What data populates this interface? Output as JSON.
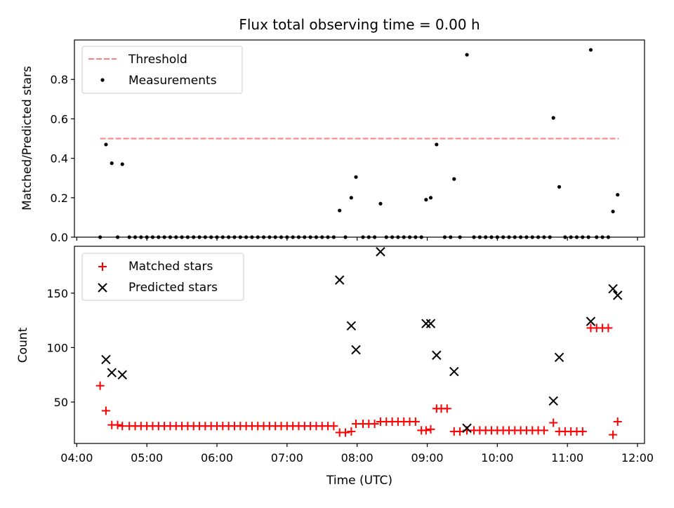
{
  "chart_data": {
    "title": "Flux total observing time = 0.00 h",
    "xlabel": "Time (UTC)",
    "x_ticks": [
      "04:00",
      "05:00",
      "06:00",
      "07:00",
      "08:00",
      "09:00",
      "10:00",
      "11:00",
      "12:00"
    ],
    "xlim": [
      "03:58",
      "12:06"
    ],
    "grid": false,
    "panels": [
      {
        "type": "scatter",
        "ylabel": "Matched/Predicted stars",
        "ylim": [
          0,
          1.0
        ],
        "y_ticks": [
          0.0,
          0.2,
          0.4,
          0.6,
          0.8
        ],
        "legend": "top-left",
        "threshold": {
          "name": "Threshold",
          "y": 0.5,
          "x_start": "04:20",
          "x_end": "11:44",
          "color": "#ff7f7f",
          "style": "dashed"
        },
        "series": [
          {
            "name": "Measurements",
            "color": "#000000",
            "marker": "dot",
            "points": [
              [
                "04:20",
                0.0
              ],
              [
                "04:25",
                0.47
              ],
              [
                "04:30",
                0.375
              ],
              [
                "04:35",
                0.0
              ],
              [
                "04:39",
                0.37
              ],
              [
                "04:45",
                0.0
              ],
              [
                "04:50",
                0.0
              ],
              [
                "04:55",
                0.0
              ],
              [
                "05:00",
                0.0
              ],
              [
                "05:05",
                0.0
              ],
              [
                "05:10",
                0.0
              ],
              [
                "05:15",
                0.0
              ],
              [
                "05:20",
                0.0
              ],
              [
                "05:25",
                0.0
              ],
              [
                "05:30",
                0.0
              ],
              [
                "05:35",
                0.0
              ],
              [
                "05:40",
                0.0
              ],
              [
                "05:45",
                0.0
              ],
              [
                "05:50",
                0.0
              ],
              [
                "05:55",
                0.0
              ],
              [
                "06:00",
                0.0
              ],
              [
                "06:05",
                0.0
              ],
              [
                "06:10",
                0.0
              ],
              [
                "06:15",
                0.0
              ],
              [
                "06:20",
                0.0
              ],
              [
                "06:25",
                0.0
              ],
              [
                "06:30",
                0.0
              ],
              [
                "06:35",
                0.0
              ],
              [
                "06:40",
                0.0
              ],
              [
                "06:45",
                0.0
              ],
              [
                "06:50",
                0.0
              ],
              [
                "06:55",
                0.0
              ],
              [
                "07:00",
                0.0
              ],
              [
                "07:05",
                0.0
              ],
              [
                "07:10",
                0.0
              ],
              [
                "07:15",
                0.0
              ],
              [
                "07:20",
                0.0
              ],
              [
                "07:25",
                0.0
              ],
              [
                "07:30",
                0.0
              ],
              [
                "07:35",
                0.0
              ],
              [
                "07:40",
                0.0
              ],
              [
                "07:45",
                0.135
              ],
              [
                "07:50",
                0.0
              ],
              [
                "07:55",
                0.2
              ],
              [
                "07:59",
                0.305
              ],
              [
                "08:05",
                0.0
              ],
              [
                "08:10",
                0.0
              ],
              [
                "08:15",
                0.0
              ],
              [
                "08:20",
                0.17
              ],
              [
                "08:25",
                0.0
              ],
              [
                "08:30",
                0.0
              ],
              [
                "08:35",
                0.0
              ],
              [
                "08:40",
                0.0
              ],
              [
                "08:45",
                0.0
              ],
              [
                "08:50",
                0.0
              ],
              [
                "08:55",
                0.0
              ],
              [
                "08:59",
                0.19
              ],
              [
                "09:03",
                0.2
              ],
              [
                "09:08",
                0.47
              ],
              [
                "09:15",
                0.0
              ],
              [
                "09:20",
                0.0
              ],
              [
                "09:23",
                0.295
              ],
              [
                "09:28",
                0.0
              ],
              [
                "09:34",
                0.925
              ],
              [
                "09:40",
                0.0
              ],
              [
                "09:45",
                0.0
              ],
              [
                "09:50",
                0.0
              ],
              [
                "09:55",
                0.0
              ],
              [
                "10:00",
                0.0
              ],
              [
                "10:05",
                0.0
              ],
              [
                "10:10",
                0.0
              ],
              [
                "10:15",
                0.0
              ],
              [
                "10:20",
                0.0
              ],
              [
                "10:25",
                0.0
              ],
              [
                "10:30",
                0.0
              ],
              [
                "10:35",
                0.0
              ],
              [
                "10:40",
                0.0
              ],
              [
                "10:45",
                0.0
              ],
              [
                "10:48",
                0.605
              ],
              [
                "10:53",
                0.255
              ],
              [
                "10:58",
                0.0
              ],
              [
                "11:03",
                0.0
              ],
              [
                "11:08",
                0.0
              ],
              [
                "11:13",
                0.0
              ],
              [
                "11:18",
                0.0
              ],
              [
                "11:20",
                0.95
              ],
              [
                "11:25",
                0.0
              ],
              [
                "11:30",
                0.0
              ],
              [
                "11:35",
                0.0
              ],
              [
                "11:39",
                0.13
              ],
              [
                "11:43",
                0.215
              ]
            ]
          }
        ]
      },
      {
        "type": "scatter",
        "ylabel": "Count",
        "ylim": [
          12,
          193
        ],
        "y_ticks": [
          50,
          100,
          150
        ],
        "legend": "top-left",
        "series": [
          {
            "name": "Matched stars",
            "color": "#ff0000",
            "marker": "plus",
            "points": [
              [
                "04:20",
                65
              ],
              [
                "04:25",
                42
              ],
              [
                "04:30",
                29
              ],
              [
                "04:35",
                29
              ],
              [
                "04:39",
                28
              ],
              [
                "04:45",
                28
              ],
              [
                "04:50",
                28
              ],
              [
                "04:55",
                28
              ],
              [
                "05:00",
                28
              ],
              [
                "05:05",
                28
              ],
              [
                "05:10",
                28
              ],
              [
                "05:15",
                28
              ],
              [
                "05:20",
                28
              ],
              [
                "05:25",
                28
              ],
              [
                "05:30",
                28
              ],
              [
                "05:35",
                28
              ],
              [
                "05:40",
                28
              ],
              [
                "05:45",
                28
              ],
              [
                "05:50",
                28
              ],
              [
                "05:55",
                28
              ],
              [
                "06:00",
                28
              ],
              [
                "06:05",
                28
              ],
              [
                "06:10",
                28
              ],
              [
                "06:15",
                28
              ],
              [
                "06:20",
                28
              ],
              [
                "06:25",
                28
              ],
              [
                "06:30",
                28
              ],
              [
                "06:35",
                28
              ],
              [
                "06:40",
                28
              ],
              [
                "06:45",
                28
              ],
              [
                "06:50",
                28
              ],
              [
                "06:55",
                28
              ],
              [
                "07:00",
                28
              ],
              [
                "07:05",
                28
              ],
              [
                "07:10",
                28
              ],
              [
                "07:15",
                28
              ],
              [
                "07:20",
                28
              ],
              [
                "07:25",
                28
              ],
              [
                "07:30",
                28
              ],
              [
                "07:35",
                28
              ],
              [
                "07:40",
                28
              ],
              [
                "07:45",
                22
              ],
              [
                "07:50",
                22
              ],
              [
                "07:55",
                23
              ],
              [
                "07:59",
                30
              ],
              [
                "08:05",
                30
              ],
              [
                "08:10",
                30
              ],
              [
                "08:15",
                30
              ],
              [
                "08:20",
                32
              ],
              [
                "08:25",
                32
              ],
              [
                "08:30",
                32
              ],
              [
                "08:35",
                32
              ],
              [
                "08:40",
                32
              ],
              [
                "08:45",
                32
              ],
              [
                "08:50",
                32
              ],
              [
                "08:55",
                24
              ],
              [
                "08:59",
                24
              ],
              [
                "09:03",
                25
              ],
              [
                "09:08",
                44
              ],
              [
                "09:12",
                44
              ],
              [
                "09:17",
                44
              ],
              [
                "09:23",
                23
              ],
              [
                "09:28",
                23
              ],
              [
                "09:34",
                24
              ],
              [
                "09:40",
                24
              ],
              [
                "09:45",
                24
              ],
              [
                "09:50",
                24
              ],
              [
                "09:55",
                24
              ],
              [
                "10:00",
                24
              ],
              [
                "10:05",
                24
              ],
              [
                "10:10",
                24
              ],
              [
                "10:15",
                24
              ],
              [
                "10:20",
                24
              ],
              [
                "10:25",
                24
              ],
              [
                "10:30",
                24
              ],
              [
                "10:35",
                24
              ],
              [
                "10:40",
                24
              ],
              [
                "10:48",
                31
              ],
              [
                "10:53",
                23
              ],
              [
                "10:58",
                23
              ],
              [
                "11:03",
                23
              ],
              [
                "11:08",
                23
              ],
              [
                "11:13",
                23
              ],
              [
                "11:20",
                118
              ],
              [
                "11:25",
                118
              ],
              [
                "11:30",
                118
              ],
              [
                "11:35",
                118
              ],
              [
                "11:39",
                20
              ],
              [
                "11:43",
                32
              ]
            ]
          },
          {
            "name": "Predicted stars",
            "color": "#000000",
            "marker": "x",
            "points": [
              [
                "04:25",
                89
              ],
              [
                "04:30",
                77
              ],
              [
                "04:39",
                75
              ],
              [
                "07:45",
                162
              ],
              [
                "07:55",
                120
              ],
              [
                "07:59",
                98
              ],
              [
                "08:20",
                188
              ],
              [
                "08:59",
                122
              ],
              [
                "09:03",
                122
              ],
              [
                "09:08",
                93
              ],
              [
                "09:23",
                78
              ],
              [
                "09:34",
                26
              ],
              [
                "10:48",
                51
              ],
              [
                "10:53",
                91
              ],
              [
                "11:20",
                124
              ],
              [
                "11:39",
                154
              ],
              [
                "11:43",
                148
              ]
            ]
          }
        ]
      }
    ]
  }
}
